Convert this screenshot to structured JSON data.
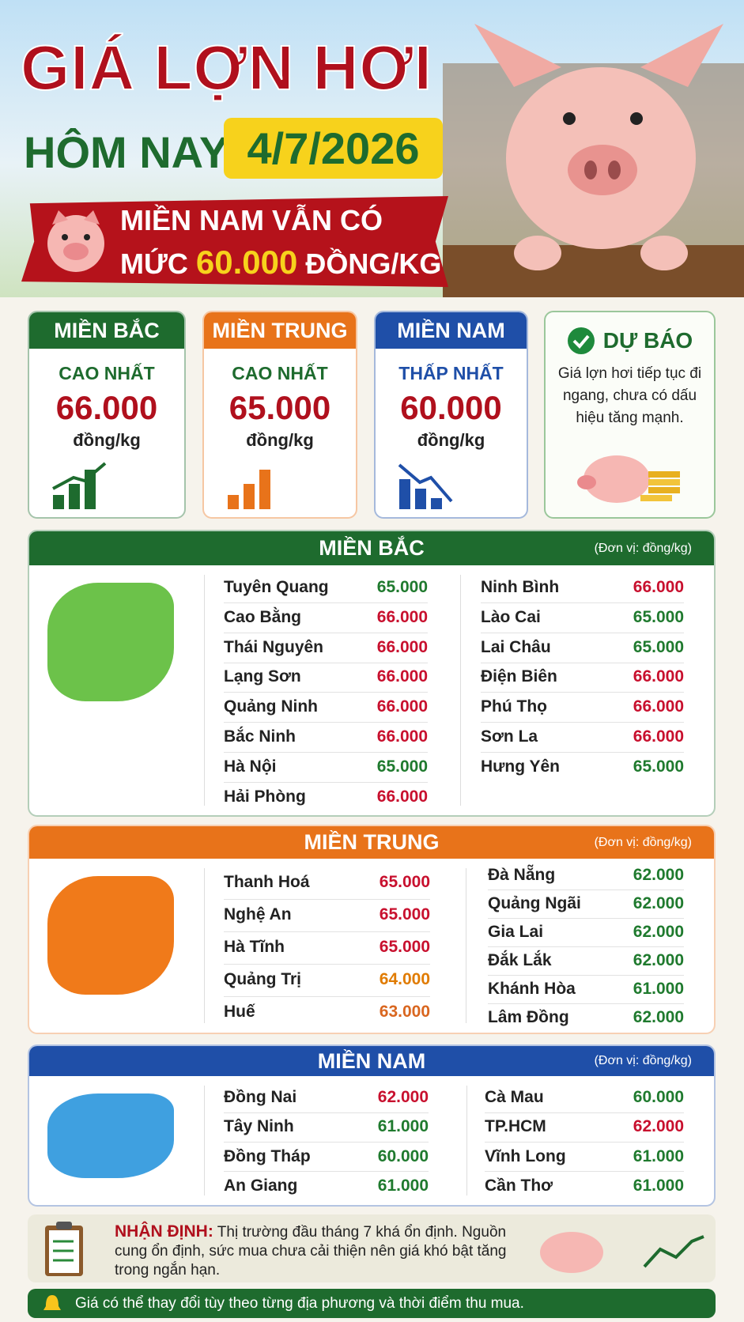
{
  "header": {
    "title": "GIÁ LỢN HƠI",
    "subtitle": "HÔM NAY",
    "date": "4/7/2026",
    "banner_line1": "MIỀN NAM VẪN CÓ",
    "banner_prefix": "MỨC",
    "banner_price": "60.000",
    "banner_suffix": "ĐỒNG/KG"
  },
  "summary": [
    {
      "region": "MIỀN BẮC",
      "label": "CAO NHẤT",
      "price": "66.000",
      "unit": "đồng/kg",
      "color": "#1e6b2e",
      "label_color": "#1e6b2e"
    },
    {
      "region": "MIỀN TRUNG",
      "label": "CAO NHẤT",
      "price": "65.000",
      "unit": "đồng/kg",
      "color": "#e8731a",
      "label_color": "#1e6b2e"
    },
    {
      "region": "MIỀN NAM",
      "label": "THẤP NHẤT",
      "price": "60.000",
      "unit": "đồng/kg",
      "color": "#1f4fa8",
      "label_color": "#1f4fa8"
    }
  ],
  "forecast": {
    "title": "DỰ BÁO",
    "text": "Giá lợn hơi tiếp tục đi ngang, chưa có dấu hiệu tăng mạnh."
  },
  "regions": [
    {
      "name": "MIỀN BẮC",
      "unit": "(Đơn vị: đồng/kg)",
      "color": "#1e6b2e",
      "columns": [
        [
          {
            "province": "Tuyên Quang",
            "price": "65.000",
            "color": "#1f7a2e"
          },
          {
            "province": "Cao Bằng",
            "price": "66.000",
            "color": "#c8102e"
          },
          {
            "province": "Thái Nguyên",
            "price": "66.000",
            "color": "#c8102e"
          },
          {
            "province": "Lạng Sơn",
            "price": "66.000",
            "color": "#c8102e"
          },
          {
            "province": "Quảng Ninh",
            "price": "66.000",
            "color": "#c8102e"
          },
          {
            "province": "Bắc Ninh",
            "price": "66.000",
            "color": "#c8102e"
          },
          {
            "province": "Hà Nội",
            "price": "65.000",
            "color": "#1f7a2e"
          },
          {
            "province": "Hải Phòng",
            "price": "66.000",
            "color": "#c8102e"
          }
        ],
        [
          {
            "province": "Ninh Bình",
            "price": "66.000",
            "color": "#c8102e"
          },
          {
            "province": "Lào Cai",
            "price": "65.000",
            "color": "#1f7a2e"
          },
          {
            "province": "Lai Châu",
            "price": "65.000",
            "color": "#1f7a2e"
          },
          {
            "province": "Điện Biên",
            "price": "66.000",
            "color": "#c8102e"
          },
          {
            "province": "Phú Thọ",
            "price": "66.000",
            "color": "#c8102e"
          },
          {
            "province": "Sơn La",
            "price": "66.000",
            "color": "#c8102e"
          },
          {
            "province": "Hưng Yên",
            "price": "65.000",
            "color": "#1f7a2e"
          }
        ]
      ]
    },
    {
      "name": "MIỀN TRUNG",
      "unit": "(Đơn vị: đồng/kg)",
      "color": "#e8731a",
      "columns": [
        [
          {
            "province": "Thanh Hoá",
            "price": "65.000",
            "color": "#c8102e"
          },
          {
            "province": "Nghệ An",
            "price": "65.000",
            "color": "#c8102e"
          },
          {
            "province": "Hà Tĩnh",
            "price": "65.000",
            "color": "#c8102e"
          },
          {
            "province": "Quảng Trị",
            "price": "64.000",
            "color": "#e07b00"
          },
          {
            "province": "Huế",
            "price": "63.000",
            "color": "#d9661f"
          }
        ],
        [
          {
            "province": "Đà Nẵng",
            "price": "62.000",
            "color": "#1f7a2e"
          },
          {
            "province": "Quảng Ngãi",
            "price": "62.000",
            "color": "#1f7a2e"
          },
          {
            "province": "Gia Lai",
            "price": "62.000",
            "color": "#1f7a2e"
          },
          {
            "province": "Đắk Lắk",
            "price": "62.000",
            "color": "#1f7a2e"
          },
          {
            "province": "Khánh Hòa",
            "price": "61.000",
            "color": "#1f7a2e"
          },
          {
            "province": "Lâm Đồng",
            "price": "62.000",
            "color": "#1f7a2e"
          }
        ]
      ]
    },
    {
      "name": "MIỀN NAM",
      "unit": "(Đơn vị: đồng/kg)",
      "color": "#1f4fa8",
      "columns": [
        [
          {
            "province": "Đồng Nai",
            "price": "62.000",
            "color": "#c8102e"
          },
          {
            "province": "Tây Ninh",
            "price": "61.000",
            "color": "#1f7a2e"
          },
          {
            "province": "Đồng Tháp",
            "price": "60.000",
            "color": "#1f7a2e"
          },
          {
            "province": "An Giang",
            "price": "61.000",
            "color": "#1f7a2e"
          }
        ],
        [
          {
            "province": "Cà Mau",
            "price": "60.000",
            "color": "#1f7a2e"
          },
          {
            "province": "TP.HCM",
            "price": "62.000",
            "color": "#c8102e"
          },
          {
            "province": "Vĩnh Long",
            "price": "61.000",
            "color": "#1f7a2e"
          },
          {
            "province": "Cần Thơ",
            "price": "61.000",
            "color": "#1f7a2e"
          }
        ]
      ]
    }
  ],
  "analysis": {
    "label": "NHẬN ĐỊNH:",
    "text": "Thị trường đầu tháng 7 khá ổn định. Nguồn cung ổn định, sức mua chưa cải thiện nên giá khó bật tăng trong ngắn hạn."
  },
  "footer": "Giá có thể thay đổi tùy theo từng địa phương và thời điểm thu mua."
}
